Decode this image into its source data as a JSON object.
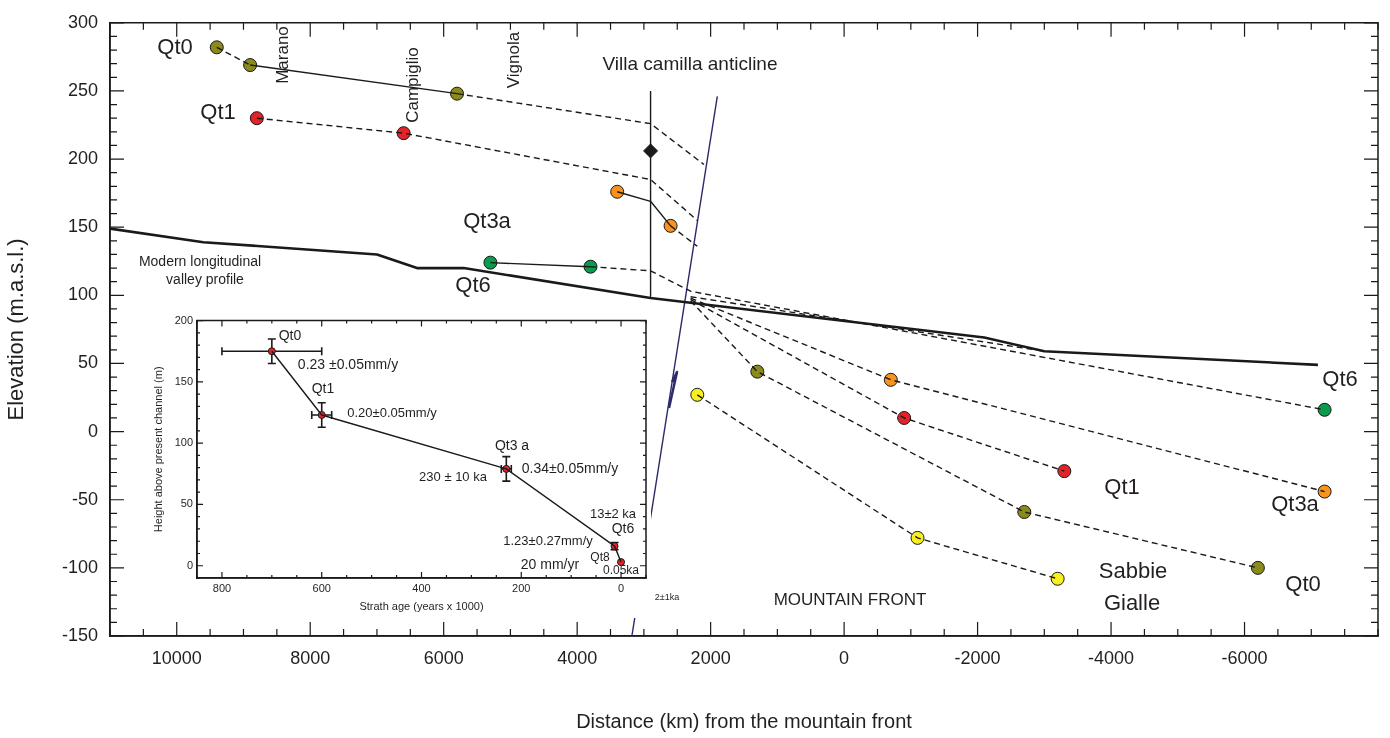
{
  "chart_data": [
    {
      "type": "scatter",
      "xlabel": "Distance (km) from the mountain front",
      "ylabel": "Elevation (m.a.s.l.)",
      "legend": false,
      "xlim": [
        11000,
        -8000
      ],
      "ylim": [
        -150,
        300
      ],
      "xticks": [
        {
          "value": 11000,
          "label": null
        },
        {
          "value": 10500,
          "label": null
        },
        10000,
        {
          "value": 9500,
          "label": null
        },
        {
          "value": 9000,
          "label": null
        },
        {
          "value": 8500,
          "label": null
        },
        8000,
        {
          "value": 7500,
          "label": null
        },
        {
          "value": 7000,
          "label": null
        },
        {
          "value": 6500,
          "label": null
        },
        6000,
        {
          "value": 5500,
          "label": null
        },
        {
          "value": 5000,
          "label": null
        },
        {
          "value": 4500,
          "label": null
        },
        4000,
        {
          "value": 3500,
          "label": null
        },
        {
          "value": 3000,
          "label": null
        },
        {
          "value": 2500,
          "label": null
        },
        2000,
        {
          "value": 1500,
          "label": null
        },
        {
          "value": 1000,
          "label": null
        },
        {
          "value": 500,
          "label": null
        },
        0,
        {
          "value": -500,
          "label": null
        },
        {
          "value": -1000,
          "label": null
        },
        {
          "value": -1500,
          "label": null
        },
        -2000,
        {
          "value": -2500,
          "label": null
        },
        {
          "value": -3000,
          "label": null
        },
        {
          "value": -3500,
          "label": null
        },
        -4000,
        {
          "value": -4500,
          "label": null
        },
        {
          "value": -5000,
          "label": null
        },
        {
          "value": -5500,
          "label": null
        },
        -6000,
        {
          "value": -6500,
          "label": null
        },
        {
          "value": -7000,
          "label": null
        },
        {
          "value": -7500,
          "label": null
        },
        {
          "value": -8000,
          "label": null
        }
      ],
      "yticks": [
        -150,
        {
          "value": -140,
          "label": null
        },
        {
          "value": -130,
          "label": null
        },
        {
          "value": -120,
          "label": null
        },
        {
          "value": -110,
          "label": null
        },
        -100,
        {
          "value": -90,
          "label": null
        },
        {
          "value": -80,
          "label": null
        },
        {
          "value": -70,
          "label": null
        },
        {
          "value": -60,
          "label": null
        },
        -50,
        {
          "value": -40,
          "label": null
        },
        {
          "value": -30,
          "label": null
        },
        {
          "value": -20,
          "label": null
        },
        {
          "value": -10,
          "label": null
        },
        0,
        {
          "value": 10,
          "label": null
        },
        {
          "value": 20,
          "label": null
        },
        {
          "value": 30,
          "label": null
        },
        {
          "value": 40,
          "label": null
        },
        50,
        {
          "value": 60,
          "label": null
        },
        {
          "value": 70,
          "label": null
        },
        {
          "value": 80,
          "label": null
        },
        {
          "value": 90,
          "label": null
        },
        100,
        {
          "value": 110,
          "label": null
        },
        {
          "value": 120,
          "label": null
        },
        {
          "value": 130,
          "label": null
        },
        {
          "value": 140,
          "label": null
        },
        150,
        {
          "value": 160,
          "label": null
        },
        {
          "value": 170,
          "label": null
        },
        {
          "value": 180,
          "label": null
        },
        {
          "value": 190,
          "label": null
        },
        200,
        {
          "value": 210,
          "label": null
        },
        {
          "value": 220,
          "label": null
        },
        {
          "value": 230,
          "label": null
        },
        {
          "value": 240,
          "label": null
        },
        250,
        {
          "value": 260,
          "label": null
        },
        {
          "value": 270,
          "label": null
        },
        {
          "value": 280,
          "label": null
        },
        {
          "value": 290,
          "label": null
        },
        300
      ],
      "series": [
        {
          "type": "line",
          "color": "#1a1a1a",
          "marker": "none",
          "line_style": "solid",
          "x": [
            11000,
            9600,
            7000,
            6400,
            5700,
            2900,
            -2100,
            -3000,
            -7100
          ],
          "values": [
            149,
            139,
            130,
            120,
            120,
            98,
            69,
            59,
            49
          ]
        },
        {
          "type": "line",
          "color": "#1a1a1a",
          "marker": "none",
          "line_style": "dashed",
          "x": [
            9400,
            8900
          ],
          "values": [
            282,
            269
          ]
        },
        {
          "type": "line",
          "color": "#1a1a1a",
          "marker": "none",
          "line_style": "solid",
          "x": [
            8900,
            5800
          ],
          "values": [
            269,
            248
          ]
        },
        {
          "type": "line",
          "color": "#1a1a1a",
          "marker": "none",
          "line_style": "dashed",
          "x": [
            5800,
            2900,
            2100
          ],
          "values": [
            248,
            226,
            196
          ]
        },
        {
          "type": "line",
          "color": "#1a1a1a",
          "marker": "none",
          "line_style": "dashed",
          "x": [
            2300,
            1300,
            -2700,
            -6200
          ],
          "values": [
            96,
            44,
            -59,
            -100
          ]
        },
        {
          "type": "line",
          "color": "#1a1a1a",
          "marker": "none",
          "line_style": "dashed",
          "x": [
            8800,
            6600,
            2900,
            2200
          ],
          "values": [
            230,
            219,
            185,
            155
          ]
        },
        {
          "type": "line",
          "color": "#1a1a1a",
          "marker": "none",
          "line_style": "dashed",
          "x": [
            2300,
            -900,
            -3300
          ],
          "values": [
            97,
            10,
            -29
          ]
        },
        {
          "type": "line",
          "color": "#1a1a1a",
          "marker": "none",
          "line_style": "solid",
          "x": [
            3400,
            2900,
            2600
          ],
          "values": [
            176,
            169,
            151
          ]
        },
        {
          "type": "line",
          "color": "#1a1a1a",
          "marker": "none",
          "line_style": "dashed",
          "x": [
            2600,
            2200
          ],
          "values": [
            151,
            136
          ]
        },
        {
          "type": "line",
          "color": "#1a1a1a",
          "marker": "none",
          "line_style": "dashed",
          "x": [
            2300,
            -700,
            -7200
          ],
          "values": [
            98,
            38,
            -44
          ]
        },
        {
          "type": "line",
          "color": "#1a1a1a",
          "marker": "none",
          "line_style": "solid",
          "x": [
            5300,
            3800
          ],
          "values": [
            124,
            121
          ]
        },
        {
          "type": "line",
          "color": "#1a1a1a",
          "marker": "none",
          "line_style": "dashed",
          "x": [
            3800,
            2900,
            2300,
            -7200
          ],
          "values": [
            121,
            118,
            103,
            16
          ]
        },
        {
          "type": "line",
          "color": "#1a1a1a",
          "marker": "none",
          "line_style": "dashed",
          "x": [
            2300,
            -3000
          ],
          "values": [
            99,
            59
          ]
        },
        {
          "type": "line",
          "color": "#1a1a1a",
          "marker": "none",
          "line_style": "dashed",
          "x": [
            2200,
            -1100,
            -3200
          ],
          "values": [
            27,
            -78,
            -108
          ]
        },
        {
          "type": "line",
          "color": "#1a1a1a",
          "marker": "none",
          "line_style": "solid",
          "x": [
            2900,
            2900
          ],
          "values": [
            98,
            250
          ]
        },
        {
          "type": "line",
          "color": "#2b2a6b",
          "marker": "none",
          "line_style": "solid",
          "x": [
            1900,
            3180
          ],
          "values": [
            246,
            -150
          ]
        },
        {
          "type": "scatter",
          "color": "#1a1a1a",
          "marker": "diamond",
          "x": [
            2900
          ],
          "values": [
            206
          ]
        },
        {
          "type": "scatter",
          "color": "#8b8a1d",
          "marker": "circle",
          "x": [
            9400,
            8900,
            5800,
            1300,
            -2700,
            -6200
          ],
          "values": [
            282,
            269,
            248,
            44,
            -59,
            -100
          ]
        },
        {
          "type": "scatter",
          "color": "#e3232a",
          "marker": "circle",
          "x": [
            8800,
            6600,
            -900,
            -3300
          ],
          "values": [
            230,
            219,
            10,
            -29
          ]
        },
        {
          "type": "scatter",
          "color": "#f7931e",
          "marker": "circle",
          "x": [
            3400,
            2600,
            -700,
            -7200
          ],
          "values": [
            176,
            151,
            38,
            -44
          ]
        },
        {
          "type": "scatter",
          "color": "#0b9b4c",
          "marker": "circle",
          "x": [
            5300,
            3800,
            -7200
          ],
          "values": [
            124,
            121,
            16
          ]
        },
        {
          "type": "scatter",
          "color": "#f8ef1f",
          "marker": "circle",
          "x": [
            2200,
            -1100,
            -3200
          ],
          "values": [
            27,
            -78,
            -108
          ]
        }
      ],
      "annotations": [
        "Marano",
        "Campiglio",
        "Vignola",
        "Villa camilla anticline",
        "Qt0",
        "Qt1",
        "Qt3a",
        "Qt6",
        "Modern longitudinal",
        "valley profile",
        "Qt6",
        "Qt1",
        "Qt3a",
        "Qt0",
        "Sabbie",
        "Gialle",
        "MOUNTAIN FRONT",
        "2±1ka"
      ]
    },
    {
      "type": "scatter",
      "xlabel": "Strath age (years x 1000)",
      "ylabel": "Height above present channel (m)",
      "legend": false,
      "xlim": [
        850,
        -50
      ],
      "ylim": [
        -10,
        200
      ],
      "xticks": [
        {
          "value": 850,
          "label": null
        },
        800,
        {
          "value": 750,
          "label": null
        },
        {
          "value": 700,
          "label": null
        },
        {
          "value": 650,
          "label": null
        },
        600,
        {
          "value": 550,
          "label": null
        },
        {
          "value": 500,
          "label": null
        },
        {
          "value": 450,
          "label": null
        },
        400,
        {
          "value": 350,
          "label": null
        },
        {
          "value": 300,
          "label": null
        },
        {
          "value": 250,
          "label": null
        },
        200,
        {
          "value": 150,
          "label": null
        },
        {
          "value": 100,
          "label": null
        },
        {
          "value": 50,
          "label": null
        },
        0,
        {
          "value": -50,
          "label": null
        }
      ],
      "yticks": [
        {
          "value": -10,
          "label": null
        },
        0,
        {
          "value": 10,
          "label": null
        },
        {
          "value": 20,
          "label": null
        },
        {
          "value": 30,
          "label": null
        },
        {
          "value": 40,
          "label": null
        },
        50,
        {
          "value": 60,
          "label": null
        },
        {
          "value": 70,
          "label": null
        },
        {
          "value": 80,
          "label": null
        },
        {
          "value": 90,
          "label": null
        },
        100,
        {
          "value": 110,
          "label": null
        },
        {
          "value": 120,
          "label": null
        },
        {
          "value": 130,
          "label": null
        },
        {
          "value": 140,
          "label": null
        },
        150,
        {
          "value": 160,
          "label": null
        },
        {
          "value": 170,
          "label": null
        },
        {
          "value": 180,
          "label": null
        },
        {
          "value": 190,
          "label": null
        },
        200
      ],
      "series": [
        {
          "type": "line",
          "color": "#1a1a1a",
          "marker": "none",
          "line_style": "solid",
          "x": [
            700,
            600,
            230,
            13,
            0.05
          ],
          "values": [
            175,
            123,
            79,
            16,
            3
          ]
        },
        {
          "type": "scatter",
          "color": "#e3232a",
          "marker": "circle",
          "x": [
            700,
            600,
            230,
            13,
            0.05
          ],
          "values": [
            175,
            123,
            79,
            16,
            3
          ],
          "errors": [
            10,
            10,
            10,
            3,
            null
          ],
          "xerrors": [
            100,
            20,
            10,
            2,
            null
          ]
        }
      ],
      "annotations": [
        "Qt0",
        "0.23 ±0.05mm/y",
        "Qt1",
        "0.20±0.05mm/y",
        "Qt3 a",
        "0.34±0.05mm/y",
        "230 ± 10 ka",
        "13±2 ka",
        "Qt6",
        "1.23±0.27mm/y",
        "Qt8",
        "20 mm/yr",
        "0.05ka"
      ]
    }
  ]
}
